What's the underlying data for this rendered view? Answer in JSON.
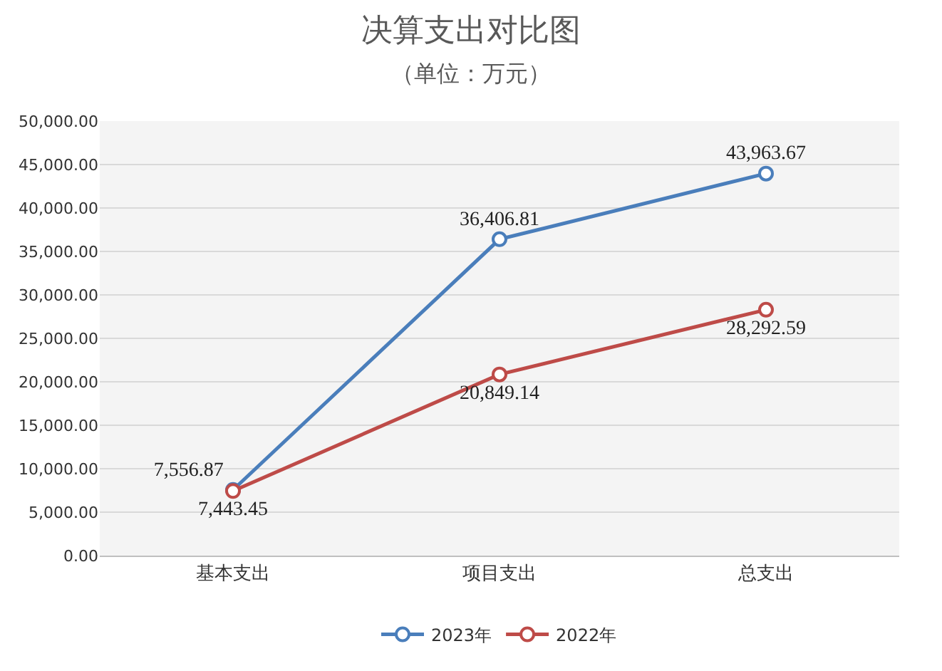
{
  "chart_data": {
    "type": "line",
    "title": "决算支出对比图",
    "subtitle": "（单位：万元）",
    "categories": [
      "基本支出",
      "项目支出",
      "总支出"
    ],
    "series": [
      {
        "name": "2023年",
        "color": "#4a7ebb",
        "values": [
          7556.87,
          36406.81,
          43963.67
        ],
        "value_labels": [
          "7,556.87",
          "36,406.81",
          "43,963.67"
        ]
      },
      {
        "name": "2022年",
        "color": "#be4b48",
        "values": [
          7443.45,
          20849.14,
          28292.59
        ],
        "value_labels": [
          "7,443.45",
          "20,849.14",
          "28,292.59"
        ]
      }
    ],
    "ylim": [
      0,
      50000
    ],
    "yticks": [
      {
        "value": 0,
        "label": "0.00"
      },
      {
        "value": 5000,
        "label": "5,000.00"
      },
      {
        "value": 10000,
        "label": "10,000.00"
      },
      {
        "value": 15000,
        "label": "15,000.00"
      },
      {
        "value": 20000,
        "label": "20,000.00"
      },
      {
        "value": 25000,
        "label": "25,000.00"
      },
      {
        "value": 30000,
        "label": "30,000.00"
      },
      {
        "value": 35000,
        "label": "35,000.00"
      },
      {
        "value": 40000,
        "label": "40,000.00"
      },
      {
        "value": 45000,
        "label": "45,000.00"
      },
      {
        "value": 50000,
        "label": "50,000.00"
      }
    ],
    "grid": "y",
    "legend": "bottom",
    "marker": "circle",
    "line_style": "solid"
  }
}
